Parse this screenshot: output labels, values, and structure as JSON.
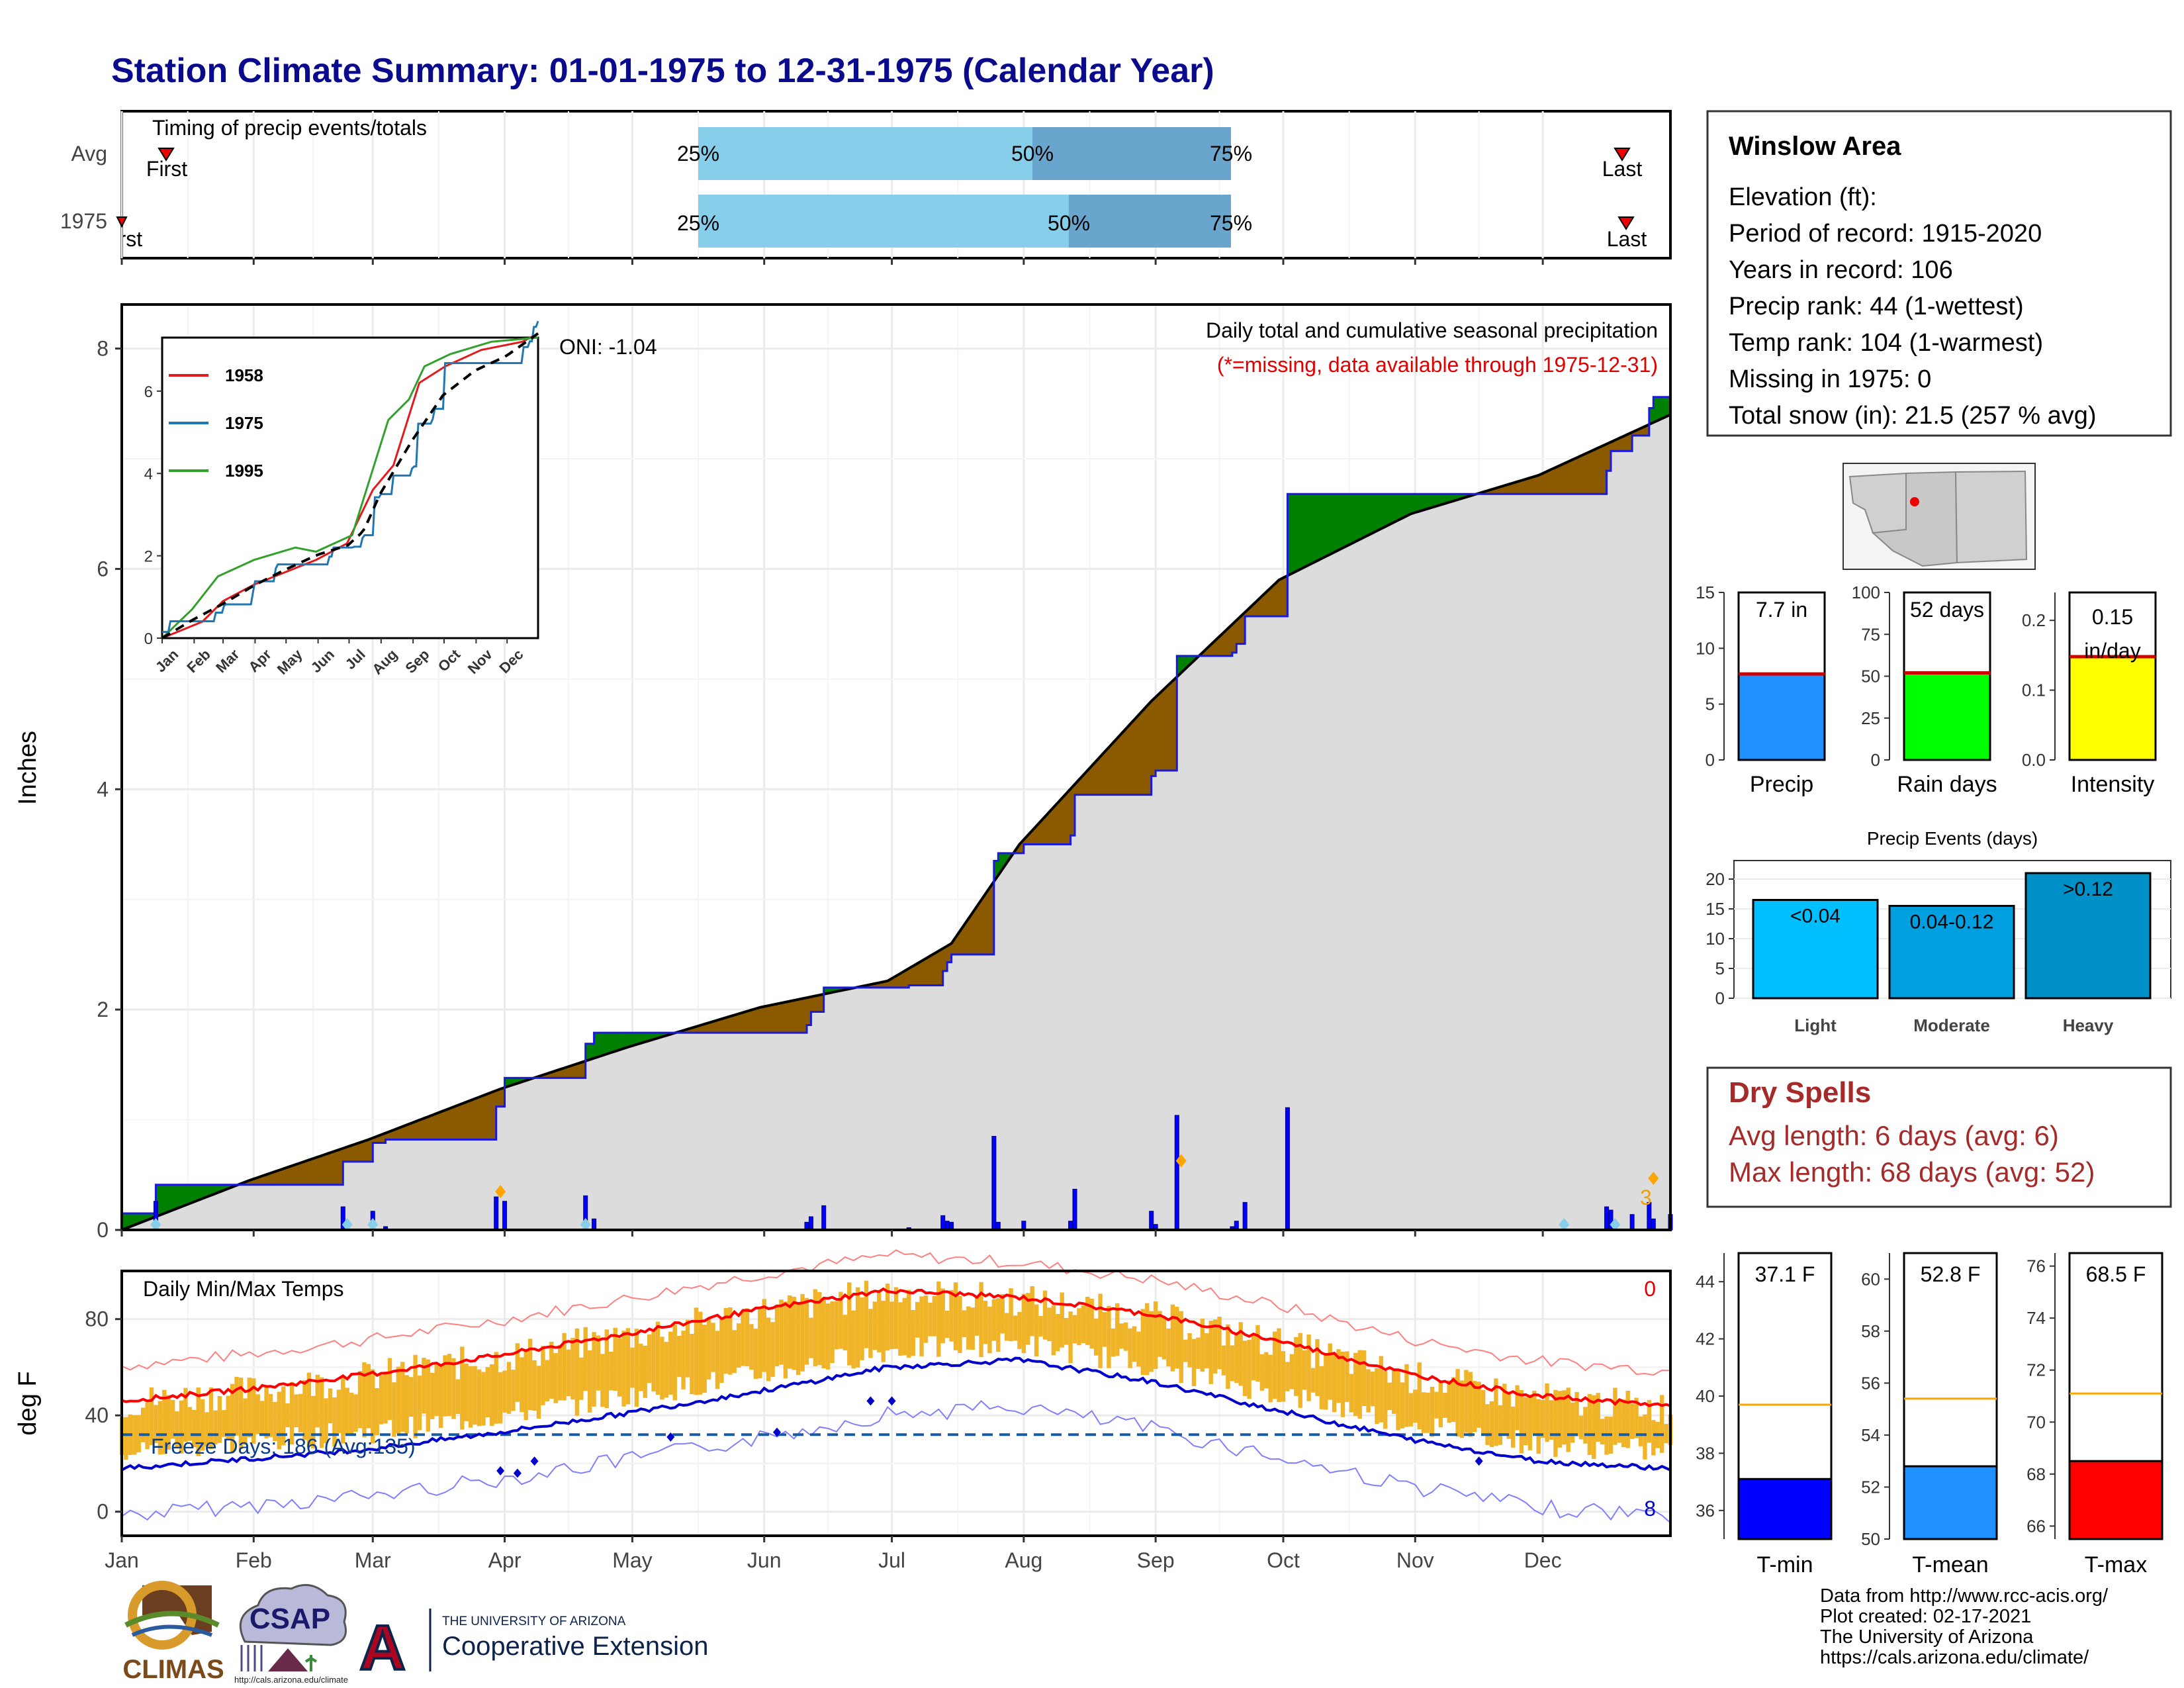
{
  "title": "Station Climate Summary: 01-01-1975 to 12-31-1975 (Calendar Year)",
  "colors": {
    "title": "#0a0a8c",
    "wet": "#008000",
    "dry": "#8b5a00",
    "cum_fill": "#dcdcdc",
    "daily_bar": "#0000ff",
    "avg_line": "#000000",
    "timing_light": "#87ceeb",
    "timing_dark": "#6aa5cd",
    "tmin": "#0000ff",
    "tmean": "#1e90ff",
    "tmax": "#ff0000",
    "temp_bar": "#f0b429",
    "dry_spell_text": "#a52a2a"
  },
  "timing": {
    "label": "Timing of precip events/totals",
    "rows": [
      "Avg",
      "1975"
    ],
    "avg": {
      "first_label": "First",
      "last_label": "Last",
      "p25": "25%",
      "p50": "50%",
      "p75": "75%"
    },
    "year": {
      "first_label": "First",
      "last_label": "Last",
      "p25": "25%",
      "p50": "50%",
      "p75": "75%"
    }
  },
  "precip_panel": {
    "ylabel": "Inches",
    "yticks": [
      "0",
      "2",
      "4",
      "6",
      "8"
    ],
    "oni": "ONI: -1.04",
    "desc1": "Daily total and cumulative seasonal precipitation",
    "desc2": "(*=missing, data available through 1975-12-31)",
    "snow_count": "3",
    "inset": {
      "legend": [
        "1958",
        "1975",
        "1995"
      ],
      "legend_colors": [
        "#e31a1c",
        "#1f78b4",
        "#33a02c"
      ],
      "yticks": [
        "0",
        "2",
        "4",
        "6"
      ],
      "xticks": [
        "Jan",
        "Feb",
        "Mar",
        "Apr",
        "May",
        "Jun",
        "Jul",
        "Aug",
        "Sep",
        "Oct",
        "Nov",
        "Dec"
      ]
    }
  },
  "temp_panel": {
    "ylabel": "deg F",
    "label": "Daily Min/Max Temps",
    "yticks": [
      "0",
      "40",
      "80"
    ],
    "freeze": "Freeze Days: 186 (Avg:135)",
    "count_top": "0",
    "count_bottom": "8"
  },
  "months": [
    "Jan",
    "Feb",
    "Mar",
    "Apr",
    "May",
    "Jun",
    "Jul",
    "Aug",
    "Sep",
    "Oct",
    "Nov",
    "Dec"
  ],
  "info": {
    "station": "Winslow Area",
    "lines": [
      "Elevation (ft):",
      "Period of record: 1915-2020",
      "Years in record: 106",
      "Precip rank: 44 (1-wettest)",
      "Temp rank: 104 (1-warmest)",
      "Missing in 1975: 0",
      "Total snow (in): 21.5 (257 % avg)"
    ]
  },
  "mini_bars": [
    {
      "label": "Precip",
      "value_text": "7.7 in",
      "value_text2": "",
      "yticks": [
        "0",
        "5",
        "10",
        "15"
      ],
      "color": "#1e90ff"
    },
    {
      "label": "Rain days",
      "value_text": "52 days",
      "value_text2": "",
      "yticks": [
        "0",
        "25",
        "50",
        "75",
        "100"
      ],
      "color": "#00ff00"
    },
    {
      "label": "Intensity",
      "value_text": "0.15",
      "value_text2": "in/day",
      "yticks": [
        "0.0",
        "0.1",
        "0.2"
      ],
      "color": "#ffff00"
    }
  ],
  "events": {
    "title": "Precip Events (days)",
    "yticks": [
      "0",
      "5",
      "10",
      "15",
      "20"
    ],
    "categories": [
      "Light",
      "Moderate",
      "Heavy"
    ],
    "bar_labels": [
      "<0.04",
      "0.04-0.12",
      ">0.12"
    ],
    "colors": [
      "#00bfff",
      "#00a0e0",
      "#0090c8"
    ]
  },
  "dry_spells": {
    "title": "Dry Spells",
    "line1": "Avg length: 6 days (avg: 6)",
    "line2": "Max length: 68 days (avg: 52)"
  },
  "temp_bars": [
    {
      "label": "T-min",
      "value_text": "37.1 F",
      "yticks": [
        "36",
        "38",
        "40",
        "42",
        "44"
      ],
      "color": "#0000ff"
    },
    {
      "label": "T-mean",
      "value_text": "52.8 F",
      "yticks": [
        "50",
        "52",
        "54",
        "56",
        "58",
        "60"
      ],
      "color": "#1e90ff"
    },
    {
      "label": "T-max",
      "value_text": "68.5 F",
      "yticks": [
        "66",
        "68",
        "70",
        "72",
        "74",
        "76"
      ],
      "color": "#ff0000"
    }
  ],
  "footer": {
    "lines": [
      "Data from http://www.rcc-acis.org/",
      "Plot created: 02-17-2021",
      "The University of Arizona",
      "https://cals.arizona.edu/climate/"
    ],
    "logo1": "CLIMAS",
    "logo2": "CSAP",
    "logo2_url": "http://cals.arizona.edu/climate",
    "logo3_a": "A",
    "logo3_line1": "THE UNIVERSITY OF ARIZONA",
    "logo3_line2": "Cooperative Extension"
  },
  "chart_data": [
    {
      "type": "line",
      "title": "Daily total and cumulative seasonal precipitation",
      "ylabel": "Inches",
      "ylim": [
        0,
        8.4
      ],
      "xlim_days": [
        1,
        365
      ],
      "series": [
        {
          "name": "1975",
          "x": [
            1,
            8,
            9,
            30,
            31,
            52,
            53,
            59,
            60,
            62,
            63,
            70,
            71,
            88,
            89,
            90,
            91,
            109,
            110,
            111,
            112,
            140,
            141,
            162,
            163,
            165,
            166,
            185,
            186,
            190,
            191,
            193,
            194,
            195,
            196,
            206,
            207,
            212,
            213,
            224,
            225,
            243,
            244,
            248,
            249,
            262,
            263,
            264,
            265,
            275,
            276,
            290,
            291,
            292,
            293,
            330,
            331,
            350,
            351,
            355,
            356,
            360,
            361,
            365
          ],
          "y": [
            0.15,
            0.15,
            0.41,
            0.41,
            0.41,
            0.41,
            0.62,
            0.62,
            0.79,
            0.79,
            0.82,
            0.82,
            0.82,
            0.82,
            1.12,
            1.12,
            1.38,
            1.38,
            1.69,
            1.69,
            1.79,
            1.79,
            1.79,
            1.86,
            1.98,
            1.98,
            2.2,
            2.2,
            2.22,
            2.22,
            2.22,
            2.22,
            2.35,
            2.43,
            2.5,
            3.35,
            3.42,
            3.42,
            3.5,
            3.58,
            3.95,
            4.12,
            4.17,
            4.17,
            5.21,
            5.24,
            5.32,
            5.32,
            5.57,
            6.68,
            6.68,
            6.68,
            6.68,
            6.68,
            6.68,
            6.68,
            6.68,
            6.89,
            7.07,
            7.07,
            7.21,
            7.46,
            7.56,
            7.7
          ]
        },
        {
          "name": "Avg",
          "x": [
            1,
            31,
            59,
            90,
            120,
            151,
            181,
            196,
            212,
            243,
            273,
            304,
            334,
            365
          ],
          "y": [
            0.0,
            0.45,
            0.82,
            1.28,
            1.66,
            2.02,
            2.26,
            2.6,
            3.5,
            4.8,
            5.9,
            6.5,
            6.85,
            7.4
          ]
        }
      ],
      "annotations": [
        "ONI: -1.04"
      ]
    },
    {
      "type": "line",
      "title": "Daily Min/Max Temps",
      "ylabel": "deg F",
      "ylim": [
        -10,
        100
      ],
      "series": [
        {
          "name": "Avg max",
          "x": [
            1,
            31,
            59,
            90,
            120,
            151,
            181,
            212,
            243,
            273,
            304,
            334,
            365
          ],
          "y": [
            46,
            51,
            57,
            65,
            74,
            84,
            92,
            89,
            82,
            71,
            57,
            48,
            44
          ]
        },
        {
          "name": "Avg min",
          "x": [
            1,
            31,
            59,
            90,
            120,
            151,
            181,
            212,
            243,
            273,
            304,
            334,
            365
          ],
          "y": [
            18,
            22,
            26,
            33,
            41,
            50,
            60,
            63,
            54,
            42,
            30,
            21,
            18
          ]
        }
      ],
      "annotations": [
        "Freeze Days: 186 (Avg:135)"
      ]
    },
    {
      "type": "bar",
      "title": "Precip",
      "categories": [
        "Precip"
      ],
      "values": [
        7.7
      ],
      "ylim": [
        0,
        15
      ]
    },
    {
      "type": "bar",
      "title": "Rain days",
      "categories": [
        "Rain days"
      ],
      "values": [
        52
      ],
      "ylim": [
        0,
        100
      ]
    },
    {
      "type": "bar",
      "title": "Intensity",
      "categories": [
        "Intensity"
      ],
      "values": [
        0.148
      ],
      "ylim": [
        0,
        0.24
      ]
    },
    {
      "type": "bar",
      "title": "Precip Events (days)",
      "categories": [
        "Light",
        "Moderate",
        "Heavy"
      ],
      "values": [
        16.5,
        15.5,
        21
      ],
      "ylim": [
        0,
        22
      ]
    },
    {
      "type": "bar",
      "title": "T-min",
      "categories": [
        "T-min"
      ],
      "values": [
        37.1
      ],
      "reference": 39.7,
      "ylim": [
        35,
        45
      ]
    },
    {
      "type": "bar",
      "title": "T-mean",
      "categories": [
        "T-mean"
      ],
      "values": [
        52.8
      ],
      "reference": 55.4,
      "ylim": [
        50,
        61
      ]
    },
    {
      "type": "bar",
      "title": "T-max",
      "categories": [
        "T-max"
      ],
      "values": [
        68.5
      ],
      "reference": 71.1,
      "ylim": [
        65.5,
        76.5
      ]
    }
  ]
}
